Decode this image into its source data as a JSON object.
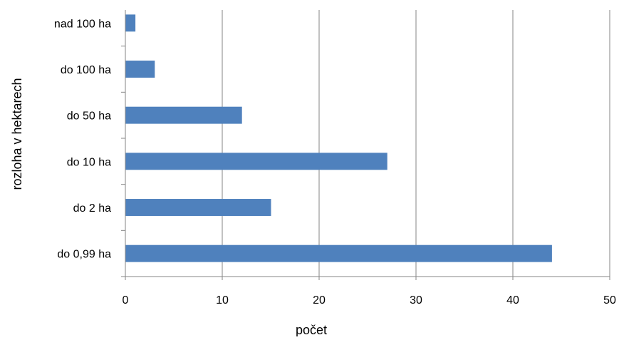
{
  "chart_data": {
    "type": "bar",
    "orientation": "horizontal",
    "categories": [
      "do 0,99 ha",
      "do 2 ha",
      "do 10 ha",
      "do 50 ha",
      "do 100 ha",
      "nad 100 ha"
    ],
    "values": [
      44,
      15,
      27,
      12,
      3,
      1
    ],
    "xlabel": "počet",
    "ylabel": "rozloha v hektarech",
    "xlim": [
      0,
      50
    ],
    "xticks": [
      0,
      10,
      20,
      30,
      40,
      50
    ],
    "grid": "vertical",
    "legend": "none",
    "colors": {
      "bar": "#4F81BD",
      "grid": "#868686",
      "axis": "#868686"
    }
  }
}
